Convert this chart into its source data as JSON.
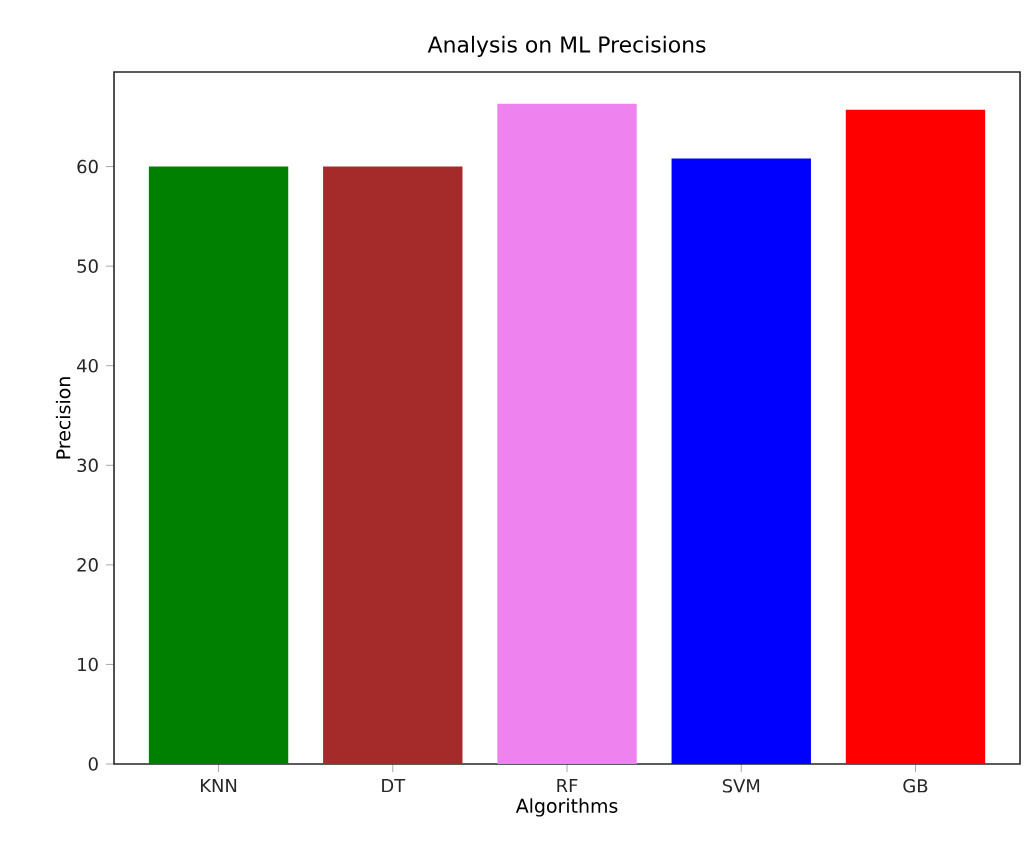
{
  "chart_data": {
    "type": "bar",
    "title": "Analysis on ML Precisions",
    "xlabel": "Algorithms",
    "ylabel": "Precision",
    "categories": [
      "KNN",
      "DT",
      "RF",
      "SVM",
      "GB"
    ],
    "values": [
      60.0,
      60.0,
      66.3,
      60.8,
      65.7
    ],
    "colors": [
      "#008000",
      "#a52a2a",
      "#ee82ee",
      "#0000ff",
      "#ff0000"
    ],
    "ylim": [
      0,
      69.5
    ],
    "yticks": [
      0,
      10,
      20,
      30,
      40,
      50,
      60
    ],
    "grid": false
  }
}
